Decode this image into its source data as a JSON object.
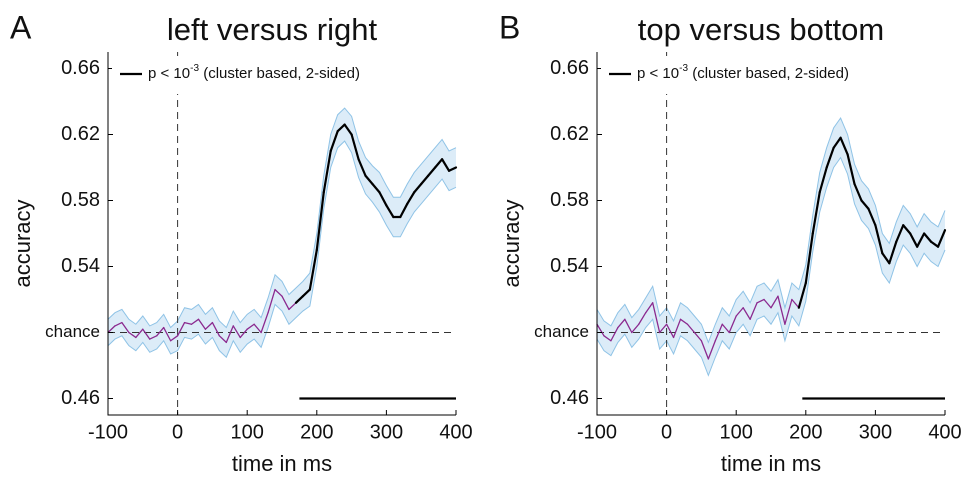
{
  "chart_data": [
    {
      "type": "line",
      "label": "A",
      "title": "left versus right",
      "xlabel": "time in ms",
      "ylabel": "accuracy",
      "legend": [
        "p < 10",
        "-3",
        " (cluster based, 2-sided)"
      ],
      "x": [
        -100,
        -90,
        -80,
        -70,
        -60,
        -50,
        -40,
        -30,
        -20,
        -10,
        0,
        10,
        20,
        30,
        40,
        50,
        60,
        70,
        80,
        90,
        100,
        110,
        120,
        130,
        140,
        150,
        160,
        170,
        180,
        190,
        200,
        210,
        220,
        230,
        240,
        250,
        260,
        270,
        280,
        290,
        300,
        310,
        320,
        330,
        340,
        350,
        360,
        370,
        380,
        390,
        400
      ],
      "values": [
        0.5,
        0.504,
        0.506,
        0.5,
        0.497,
        0.502,
        0.496,
        0.498,
        0.503,
        0.495,
        0.498,
        0.506,
        0.505,
        0.508,
        0.502,
        0.506,
        0.498,
        0.494,
        0.504,
        0.497,
        0.502,
        0.505,
        0.5,
        0.512,
        0.526,
        0.522,
        0.514,
        0.518,
        0.522,
        0.526,
        0.55,
        0.585,
        0.61,
        0.622,
        0.626,
        0.62,
        0.605,
        0.595,
        0.59,
        0.585,
        0.577,
        0.57,
        0.57,
        0.578,
        0.585,
        0.59,
        0.595,
        0.6,
        0.605,
        0.598,
        0.6
      ],
      "errors": [
        0.008,
        0.008,
        0.008,
        0.008,
        0.008,
        0.008,
        0.008,
        0.008,
        0.008,
        0.008,
        0.009,
        0.009,
        0.009,
        0.009,
        0.009,
        0.009,
        0.009,
        0.009,
        0.009,
        0.009,
        0.009,
        0.009,
        0.009,
        0.009,
        0.009,
        0.009,
        0.009,
        0.009,
        0.009,
        0.01,
        0.01,
        0.01,
        0.01,
        0.01,
        0.01,
        0.011,
        0.011,
        0.011,
        0.011,
        0.012,
        0.012,
        0.012,
        0.012,
        0.012,
        0.012,
        0.012,
        0.012,
        0.012,
        0.012,
        0.012,
        0.012
      ],
      "color": "#8b2a8f",
      "significant_color": "#000000",
      "band_color": "#dcecf8",
      "band_edge": "#8fc3e6",
      "significant_x": [
        175,
        400
      ],
      "significance_y": 0.46,
      "chance_level": 0.5,
      "onset": 0,
      "xlim": [
        -100,
        400
      ],
      "xticks": [
        -100,
        0,
        100,
        200,
        300,
        400
      ],
      "ylim": [
        0.45,
        0.67
      ],
      "yticks": [
        0.46,
        {
          "value": 0.5,
          "label": "chance"
        },
        0.54,
        0.58,
        0.62,
        0.66
      ]
    },
    {
      "type": "line",
      "label": "B",
      "title": "top versus bottom",
      "xlabel": "time in ms",
      "ylabel": "accuracy",
      "legend": [
        "p < 10",
        "-3",
        " (cluster based, 2-sided)"
      ],
      "x": [
        -100,
        -90,
        -80,
        -70,
        -60,
        -50,
        -40,
        -30,
        -20,
        -10,
        0,
        10,
        20,
        30,
        40,
        50,
        60,
        70,
        80,
        90,
        100,
        110,
        120,
        130,
        140,
        150,
        160,
        170,
        180,
        190,
        200,
        210,
        220,
        230,
        240,
        250,
        260,
        270,
        280,
        290,
        300,
        310,
        320,
        330,
        340,
        350,
        360,
        370,
        380,
        390,
        400
      ],
      "values": [
        0.505,
        0.498,
        0.495,
        0.503,
        0.508,
        0.5,
        0.505,
        0.512,
        0.518,
        0.5,
        0.505,
        0.497,
        0.508,
        0.505,
        0.5,
        0.495,
        0.484,
        0.495,
        0.505,
        0.5,
        0.51,
        0.515,
        0.508,
        0.518,
        0.52,
        0.515,
        0.522,
        0.505,
        0.52,
        0.515,
        0.53,
        0.56,
        0.585,
        0.6,
        0.612,
        0.618,
        0.608,
        0.59,
        0.58,
        0.575,
        0.565,
        0.548,
        0.542,
        0.555,
        0.565,
        0.56,
        0.552,
        0.56,
        0.555,
        0.552,
        0.562
      ],
      "errors": [
        0.009,
        0.009,
        0.009,
        0.009,
        0.009,
        0.009,
        0.009,
        0.009,
        0.01,
        0.01,
        0.01,
        0.01,
        0.01,
        0.01,
        0.01,
        0.01,
        0.01,
        0.01,
        0.01,
        0.01,
        0.01,
        0.01,
        0.01,
        0.01,
        0.01,
        0.01,
        0.01,
        0.01,
        0.01,
        0.011,
        0.011,
        0.011,
        0.012,
        0.012,
        0.012,
        0.012,
        0.012,
        0.012,
        0.012,
        0.012,
        0.012,
        0.012,
        0.012,
        0.012,
        0.012,
        0.012,
        0.012,
        0.012,
        0.012,
        0.012,
        0.012
      ],
      "color": "#8b2a8f",
      "significant_color": "#000000",
      "band_color": "#dcecf8",
      "band_edge": "#8fc3e6",
      "significant_x": [
        195,
        400
      ],
      "significance_y": 0.46,
      "chance_level": 0.5,
      "onset": 0,
      "xlim": [
        -100,
        400
      ],
      "xticks": [
        -100,
        0,
        100,
        200,
        300,
        400
      ],
      "ylim": [
        0.45,
        0.67
      ],
      "yticks": [
        0.46,
        {
          "value": 0.5,
          "label": "chance"
        },
        0.54,
        0.58,
        0.62,
        0.66
      ]
    }
  ]
}
